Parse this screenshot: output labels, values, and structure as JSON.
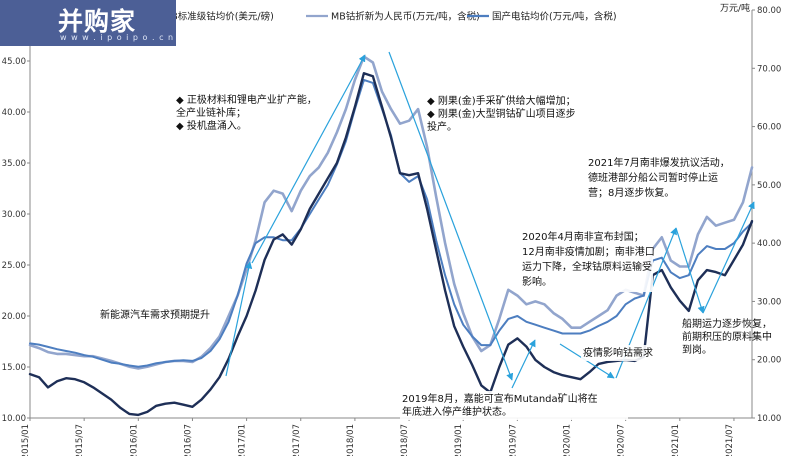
{
  "logo": {
    "name": "并购家",
    "url": "w w w . i p o i p o . c n"
  },
  "chart_data": {
    "type": "line",
    "right_axis_unit": "万元/吨",
    "y_left": {
      "min": 10,
      "max": 50,
      "ticks": [
        10,
        15,
        20,
        25,
        30,
        35,
        40,
        45
      ],
      "tick_labels": [
        "10.00",
        "15.00",
        "20.00",
        "25.00",
        "30.00",
        "35.00",
        "40.00",
        "45.00"
      ]
    },
    "y_right": {
      "min": 10,
      "max": 80,
      "ticks": [
        10,
        20,
        30,
        40,
        50,
        60,
        70,
        80
      ],
      "tick_labels": [
        "10.00",
        "20.00",
        "30.00",
        "40.00",
        "50.00",
        "60.00",
        "70.00",
        "80.00"
      ]
    },
    "x_ticks": [
      "2015/01",
      "2015/07",
      "2016/01",
      "2016/07",
      "2017/01",
      "2017/07",
      "2018/01",
      "2018/07",
      "2019/01",
      "2019/07",
      "2020/01",
      "2020/07",
      "2021/01",
      "2021/07"
    ],
    "series": [
      {
        "name": "MB标准级钴均价(美元/磅)",
        "axis": "left",
        "color": "#1e2f57",
        "width": 2.4,
        "x": [
          0,
          1,
          2,
          3,
          4,
          5,
          6,
          7,
          8,
          9,
          10,
          11,
          12,
          13,
          14,
          15,
          16,
          17,
          18,
          19,
          20,
          21,
          22,
          23,
          24,
          25,
          26,
          27,
          28,
          29,
          30,
          31,
          32,
          33,
          34,
          35,
          36,
          37,
          38,
          39,
          40,
          41,
          42,
          43,
          44,
          45,
          46,
          47,
          48,
          49,
          50,
          51,
          52,
          53,
          54,
          55,
          56,
          57,
          58,
          59,
          60,
          61,
          62,
          63,
          64,
          65,
          66,
          67,
          68,
          69,
          70,
          71,
          72,
          73,
          74,
          75,
          76,
          77,
          78,
          79,
          80
        ],
        "values": [
          14.3,
          14.0,
          13.0,
          13.6,
          13.9,
          13.8,
          13.5,
          13.0,
          12.4,
          11.8,
          11.0,
          10.4,
          10.3,
          10.6,
          11.2,
          11.4,
          11.5,
          11.3,
          11.1,
          11.8,
          12.8,
          14.0,
          15.8,
          18.0,
          20.0,
          22.5,
          25.5,
          27.5,
          28.0,
          27.0,
          28.5,
          30.5,
          32.0,
          33.5,
          35.0,
          37.5,
          40.5,
          43.8,
          43.5,
          40.5,
          37.5,
          34.0,
          33.8,
          34.0,
          30.5,
          26.5,
          22.5,
          19.0,
          17.0,
          15.2,
          13.2,
          12.5,
          15.0,
          17.2,
          17.8,
          17.0,
          15.7,
          15.0,
          14.5,
          14.2,
          14.0,
          13.8,
          14.5,
          15.3,
          15.5,
          15.6,
          15.7,
          15.6,
          16.0,
          24.0,
          24.5,
          22.8,
          21.5,
          20.5,
          23.5,
          24.5,
          24.3,
          24.0,
          25.5,
          27.0,
          29.3
        ]
      },
      {
        "name": "MB钴折新为人民币(万元/吨，含税)",
        "axis": "right",
        "color": "#92a5cd",
        "width": 2.6,
        "x": [
          0,
          1,
          2,
          3,
          4,
          5,
          6,
          7,
          8,
          9,
          10,
          11,
          12,
          13,
          14,
          15,
          16,
          17,
          18,
          19,
          20,
          21,
          22,
          23,
          24,
          25,
          26,
          27,
          28,
          29,
          30,
          31,
          32,
          33,
          34,
          35,
          36,
          37,
          38,
          39,
          40,
          41,
          42,
          43,
          44,
          45,
          46,
          47,
          48,
          49,
          50,
          51,
          52,
          53,
          54,
          55,
          56,
          57,
          58,
          59,
          60,
          61,
          62,
          63,
          64,
          65,
          66,
          67,
          68,
          69,
          70,
          71,
          72,
          73,
          74,
          75,
          76,
          77,
          78,
          79,
          80
        ],
        "values": [
          22.5,
          22.0,
          21.3,
          21.0,
          21.0,
          20.8,
          20.6,
          20.6,
          20.2,
          19.8,
          19.3,
          18.8,
          18.5,
          18.8,
          19.2,
          19.6,
          19.8,
          19.8,
          19.6,
          20.5,
          22.0,
          24.0,
          27.5,
          31.0,
          35.5,
          40.5,
          47.0,
          49.0,
          48.5,
          45.5,
          49.0,
          51.5,
          53.0,
          55.5,
          59.0,
          63.0,
          68.0,
          72.0,
          71.0,
          66.0,
          63.0,
          60.5,
          61.0,
          63.0,
          56.5,
          48.0,
          40.0,
          33.0,
          28.0,
          24.0,
          21.5,
          22.5,
          27.0,
          32.0,
          31.0,
          29.5,
          30.0,
          29.5,
          28.0,
          27.0,
          25.5,
          25.5,
          26.5,
          27.5,
          28.5,
          31.0,
          32.0,
          31.5,
          31.0,
          39.0,
          41.0,
          37.0,
          36.0,
          36.0,
          41.5,
          44.5,
          43.0,
          43.5,
          44.0,
          47.0,
          53.0
        ]
      },
      {
        "name": "国产电钴均价(万元/吨，含税)",
        "axis": "right",
        "color": "#4d7ec0",
        "width": 2.0,
        "x": [
          0,
          1,
          2,
          3,
          4,
          5,
          6,
          7,
          8,
          9,
          10,
          11,
          12,
          13,
          14,
          15,
          16,
          17,
          18,
          19,
          20,
          21,
          22,
          23,
          24,
          25,
          26,
          27,
          28,
          29,
          30,
          31,
          32,
          33,
          34,
          35,
          36,
          37,
          38,
          39,
          40,
          41,
          42,
          43,
          44,
          45,
          46,
          47,
          48,
          49,
          50,
          51,
          52,
          53,
          54,
          55,
          56,
          57,
          58,
          59,
          60,
          61,
          62,
          63,
          64,
          65,
          66,
          67,
          68,
          69,
          70,
          71,
          72,
          73,
          74,
          75,
          76,
          77,
          78,
          79,
          80
        ],
        "values": [
          22.8,
          22.6,
          22.2,
          21.8,
          21.5,
          21.2,
          20.8,
          20.5,
          20.0,
          19.5,
          19.3,
          19.0,
          18.8,
          19.0,
          19.4,
          19.6,
          19.8,
          19.9,
          19.8,
          20.3,
          21.5,
          23.5,
          26.5,
          31.0,
          36.5,
          40.0,
          41.0,
          41.0,
          40.5,
          40.5,
          42.5,
          45.0,
          47.5,
          50.0,
          53.5,
          57.5,
          63.0,
          68.0,
          67.5,
          63.0,
          58.5,
          52.0,
          50.5,
          51.5,
          47.5,
          40.5,
          34.5,
          29.5,
          26.0,
          24.0,
          22.5,
          22.5,
          25.0,
          27.0,
          27.5,
          26.5,
          26.0,
          25.5,
          25.0,
          24.5,
          24.5,
          24.5,
          25.0,
          25.8,
          26.5,
          27.5,
          29.5,
          30.5,
          31.0,
          37.0,
          37.5,
          35.0,
          34.0,
          34.5,
          38.0,
          39.5,
          39.0,
          39.0,
          40.0,
          42.0,
          43.5
        ]
      }
    ],
    "annotations": [
      {
        "lines": [
          "新能源汽车需求预期提升"
        ]
      },
      {
        "lines": [
          "◆ 正极材料和锂电产业扩产能，",
          "   全产业链补库；",
          "◆ 投机盘涌入。"
        ]
      },
      {
        "lines": [
          "◆ 刚果(金)手采矿供给大幅增加；",
          "◆ 刚果(金)大型铜钴矿山项目逐步",
          "   投产。"
        ]
      },
      {
        "lines": [
          "2019年8月，嘉能可宣布Mutanda矿山将在",
          "年底进入停产维护状态。"
        ]
      },
      {
        "lines": [
          "2020年4月南非宣布封国；",
          "12月南非疫情加剧；南非港口",
          "运力下降，全球钴原料运输受",
          "影响。"
        ]
      },
      {
        "lines": [
          "疫情影响钴需求"
        ]
      },
      {
        "lines": [
          "2021年7月南非爆发抗议活动，",
          "德班港部分船公司暂时停止运",
          "营；8月逐步恢复。"
        ]
      },
      {
        "lines": [
          "船期运力逐步恢复，",
          "前期积压的原料集中",
          "到岗。"
        ]
      }
    ]
  }
}
